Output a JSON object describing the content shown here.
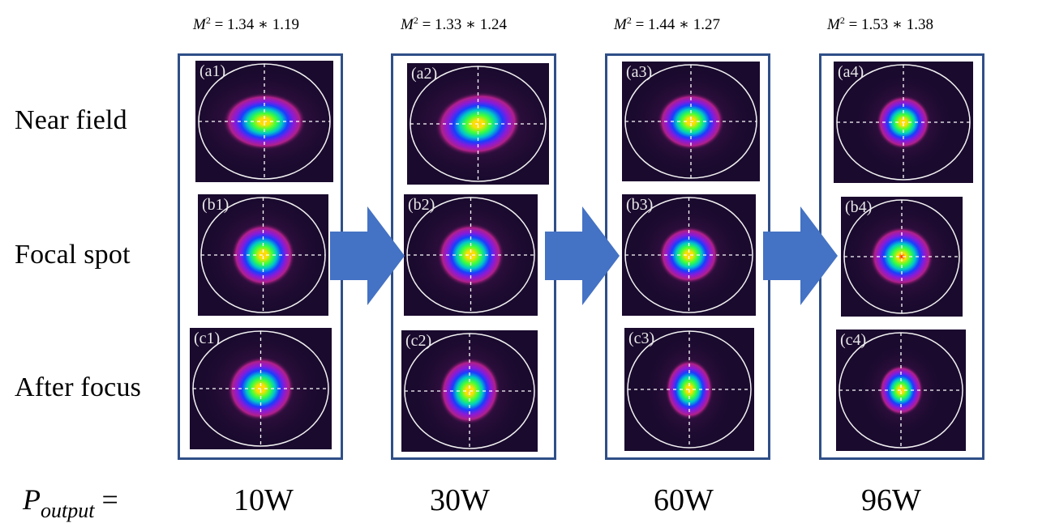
{
  "row_labels": [
    "Near field",
    "Focal spot",
    "After focus"
  ],
  "columns": [
    {
      "m2": "= 1.34 ∗ 1.19",
      "power": "10W",
      "panels": [
        "(a1)",
        "(b1)",
        "(c1)"
      ]
    },
    {
      "m2": "= 1.33 ∗ 1.24",
      "power": "30W",
      "panels": [
        "(a2)",
        "(b2)",
        "(c2)"
      ]
    },
    {
      "m2": "= 1.44 ∗ 1.27",
      "power": "60W",
      "panels": [
        "(a3)",
        "(b3)",
        "(c3)"
      ]
    },
    {
      "m2": "= 1.53 ∗ 1.38",
      "power": "96W",
      "panels": [
        "(a4)",
        "(b4)",
        "(c4)"
      ]
    }
  ],
  "m2_symbol": "M",
  "m2_exp": "2",
  "pout_symbol": "P",
  "pout_sub": "output",
  "pout_eq": "=",
  "colors": {
    "frame": "#2f4f88",
    "arrow": "#4472c4",
    "beam_bg": "#1a0a2e"
  }
}
